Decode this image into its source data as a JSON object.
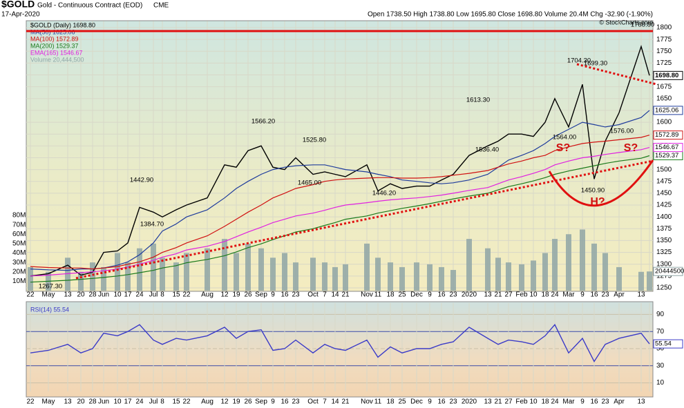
{
  "header": {
    "title": "$GOLD",
    "subtitle": "Gold - Continuous Contract (EOD)",
    "exchange": "CME",
    "date": "17-Apr-2020",
    "quote": "Open 1738.50 High 1738.80 Low 1695.80 Close 1698.80 Volume 20.4M Chg -32.90 (-1.90%)",
    "source": "© StockCharts.com"
  },
  "chart_data": [
    {
      "type": "line",
      "categories": [
        "22",
        "May",
        "13",
        "20",
        "28",
        "Jun",
        "10",
        "17",
        "24",
        "Jul",
        "8",
        "15",
        "22",
        "Aug",
        "12",
        "19",
        "26",
        "Sep",
        "9",
        "16",
        "23",
        "Oct",
        "7",
        "14",
        "21",
        "Nov",
        "11",
        "18",
        "25",
        "Dec",
        "9",
        "16",
        "23",
        "2020",
        "13",
        "21",
        "27",
        "Feb",
        "10",
        "18",
        "24",
        "Mar",
        "9",
        "16",
        "23",
        "Apr",
        "13",
        null
      ],
      "series": [
        {
          "name": "$GOLD (Daily) 1698.80",
          "color": "#000000",
          "values": [
            1275,
            1280,
            1298,
            1277,
            1283,
            1325,
            1328,
            1345,
            1420,
            1410,
            1400,
            1415,
            1425,
            1440,
            1510,
            1505,
            1540,
            1550,
            1505,
            1500,
            1525,
            1490,
            1495,
            1490,
            1485,
            1510,
            1455,
            1470,
            1460,
            1465,
            1465,
            1478,
            1490,
            1530,
            1550,
            1560,
            1575,
            1575,
            1570,
            1600,
            1650,
            1590,
            1680,
            1480,
            1560,
            1620,
            1760,
            1698.8
          ]
        },
        {
          "name": "MA(50) 1625.06",
          "color": "#1f3c9c",
          "values": [
            1290,
            1288,
            1287,
            1290,
            1290,
            1292,
            1298,
            1305,
            1320,
            1345,
            1370,
            1385,
            1400,
            1415,
            1440,
            1460,
            1475,
            1490,
            1500,
            1505,
            1508,
            1510,
            1510,
            1505,
            1500,
            1495,
            1490,
            1485,
            1478,
            1475,
            1472,
            1470,
            1472,
            1478,
            1490,
            1505,
            1520,
            1530,
            1540,
            1555,
            1570,
            1585,
            1600,
            1595,
            1590,
            1595,
            1610,
            1625.06
          ]
        },
        {
          "name": "MA(100) 1572.89",
          "color": "#d01010",
          "values": [
            1295,
            1293,
            1292,
            1292,
            1290,
            1292,
            1295,
            1300,
            1305,
            1315,
            1325,
            1335,
            1345,
            1360,
            1380,
            1395,
            1410,
            1425,
            1440,
            1450,
            1460,
            1468,
            1475,
            1478,
            1480,
            1482,
            1483,
            1483,
            1482,
            1482,
            1483,
            1485,
            1488,
            1492,
            1498,
            1505,
            1512,
            1518,
            1525,
            1530,
            1540,
            1548,
            1555,
            1558,
            1560,
            1563,
            1568,
            1572.89
          ]
        },
        {
          "name": "MA(200) 1529.37",
          "color": "#1a7a1a",
          "values": [
            1262,
            1264,
            1266,
            1268,
            1270,
            1272,
            1275,
            1278,
            1282,
            1287,
            1292,
            1297,
            1303,
            1310,
            1318,
            1326,
            1335,
            1343,
            1352,
            1360,
            1368,
            1375,
            1382,
            1388,
            1395,
            1402,
            1408,
            1413,
            1418,
            1423,
            1428,
            1433,
            1438,
            1444,
            1450,
            1457,
            1464,
            1470,
            1476,
            1483,
            1490,
            1497,
            1503,
            1508,
            1513,
            1518,
            1524,
            1529.37
          ]
        },
        {
          "name": "EMA(165) 1546.67",
          "color": "#e020e0",
          "values": [
            1275,
            1277,
            1280,
            1282,
            1284,
            1286,
            1290,
            1294,
            1300,
            1308,
            1315,
            1322,
            1330,
            1338,
            1348,
            1358,
            1368,
            1378,
            1388,
            1395,
            1402,
            1408,
            1414,
            1420,
            1425,
            1430,
            1433,
            1436,
            1438,
            1440,
            1443,
            1446,
            1450,
            1456,
            1462,
            1470,
            1478,
            1485,
            1492,
            1500,
            1510,
            1518,
            1525,
            1528,
            1532,
            1536,
            1542,
            1546.67
          ]
        },
        {
          "name": "Volume 20,444,500",
          "color": "#8fa6a6",
          "axis": "y2",
          "values": [
            25,
            20,
            35,
            20,
            30,
            25,
            40,
            30,
            45,
            50,
            35,
            30,
            40,
            45,
            55,
            40,
            50,
            45,
            35,
            40,
            30,
            35,
            30,
            25,
            28,
            50,
            35,
            30,
            25,
            30,
            28,
            25,
            22,
            55,
            45,
            35,
            30,
            28,
            32,
            40,
            55,
            60,
            65,
            50,
            40,
            25,
            20,
            20.4
          ]
        }
      ],
      "ylim": [
        1245,
        1808
      ],
      "yticks": [
        1250,
        1275,
        1300,
        1325,
        1350,
        1375,
        1400,
        1425,
        1450,
        1475,
        1500,
        1525,
        1550,
        1575,
        1600,
        1625,
        1650,
        1675,
        1700,
        1725,
        1750,
        1775,
        1800
      ],
      "y2lim": [
        0,
        80
      ],
      "y2ticks": [
        {
          "value": 10,
          "label": "10M"
        },
        {
          "value": 20,
          "label": "20M"
        },
        {
          "value": 30,
          "label": "30M"
        },
        {
          "value": 40,
          "label": "40M"
        },
        {
          "value": 50,
          "label": "50M"
        },
        {
          "value": 60,
          "label": "60M"
        },
        {
          "value": 70,
          "label": "70M"
        },
        {
          "value": 80,
          "label": "80M"
        }
      ],
      "axis_tags": [
        "1698.80",
        "1625.06",
        "1572.89",
        "1529.37",
        "1546.67",
        "20444500"
      ],
      "annotations": [
        "1788.80",
        "1704.30",
        "1699.30",
        "1613.30",
        "1566.20",
        "1525.80",
        "1442.90",
        "1384.70",
        "1465.00",
        "1446.20",
        "1536.40",
        "1564.00",
        "1576.00",
        "1450.90",
        "1267.30",
        "S?",
        "S?",
        "H?"
      ]
    },
    {
      "type": "line",
      "categories": [
        "22",
        "May",
        "13",
        "20",
        "28",
        "Jun",
        "10",
        "17",
        "24",
        "Jul",
        "8",
        "15",
        "22",
        "Aug",
        "12",
        "19",
        "26",
        "Sep",
        "9",
        "16",
        "23",
        "Oct",
        "7",
        "14",
        "21",
        "Nov",
        "11",
        "18",
        "25",
        "Dec",
        "9",
        "16",
        "23",
        "2020",
        "13",
        "21",
        "27",
        "Feb",
        "10",
        "18",
        "24",
        "Mar",
        "9",
        "16",
        "23",
        "Apr",
        "13",
        null
      ],
      "series": [
        {
          "name": "RSI(14) 55.54",
          "color": "#3a3ac8",
          "values": [
            45,
            48,
            55,
            45,
            50,
            68,
            65,
            70,
            78,
            60,
            55,
            62,
            60,
            65,
            75,
            62,
            70,
            72,
            48,
            50,
            60,
            45,
            55,
            50,
            48,
            60,
            40,
            52,
            45,
            50,
            50,
            55,
            58,
            75,
            62,
            55,
            60,
            58,
            55,
            65,
            78,
            45,
            62,
            35,
            55,
            62,
            68,
            55.54
          ]
        }
      ],
      "ylim": [
        0,
        100
      ],
      "yticks": [
        10,
        30,
        50,
        70,
        90
      ],
      "axis_tags": [
        "55.54"
      ]
    }
  ]
}
